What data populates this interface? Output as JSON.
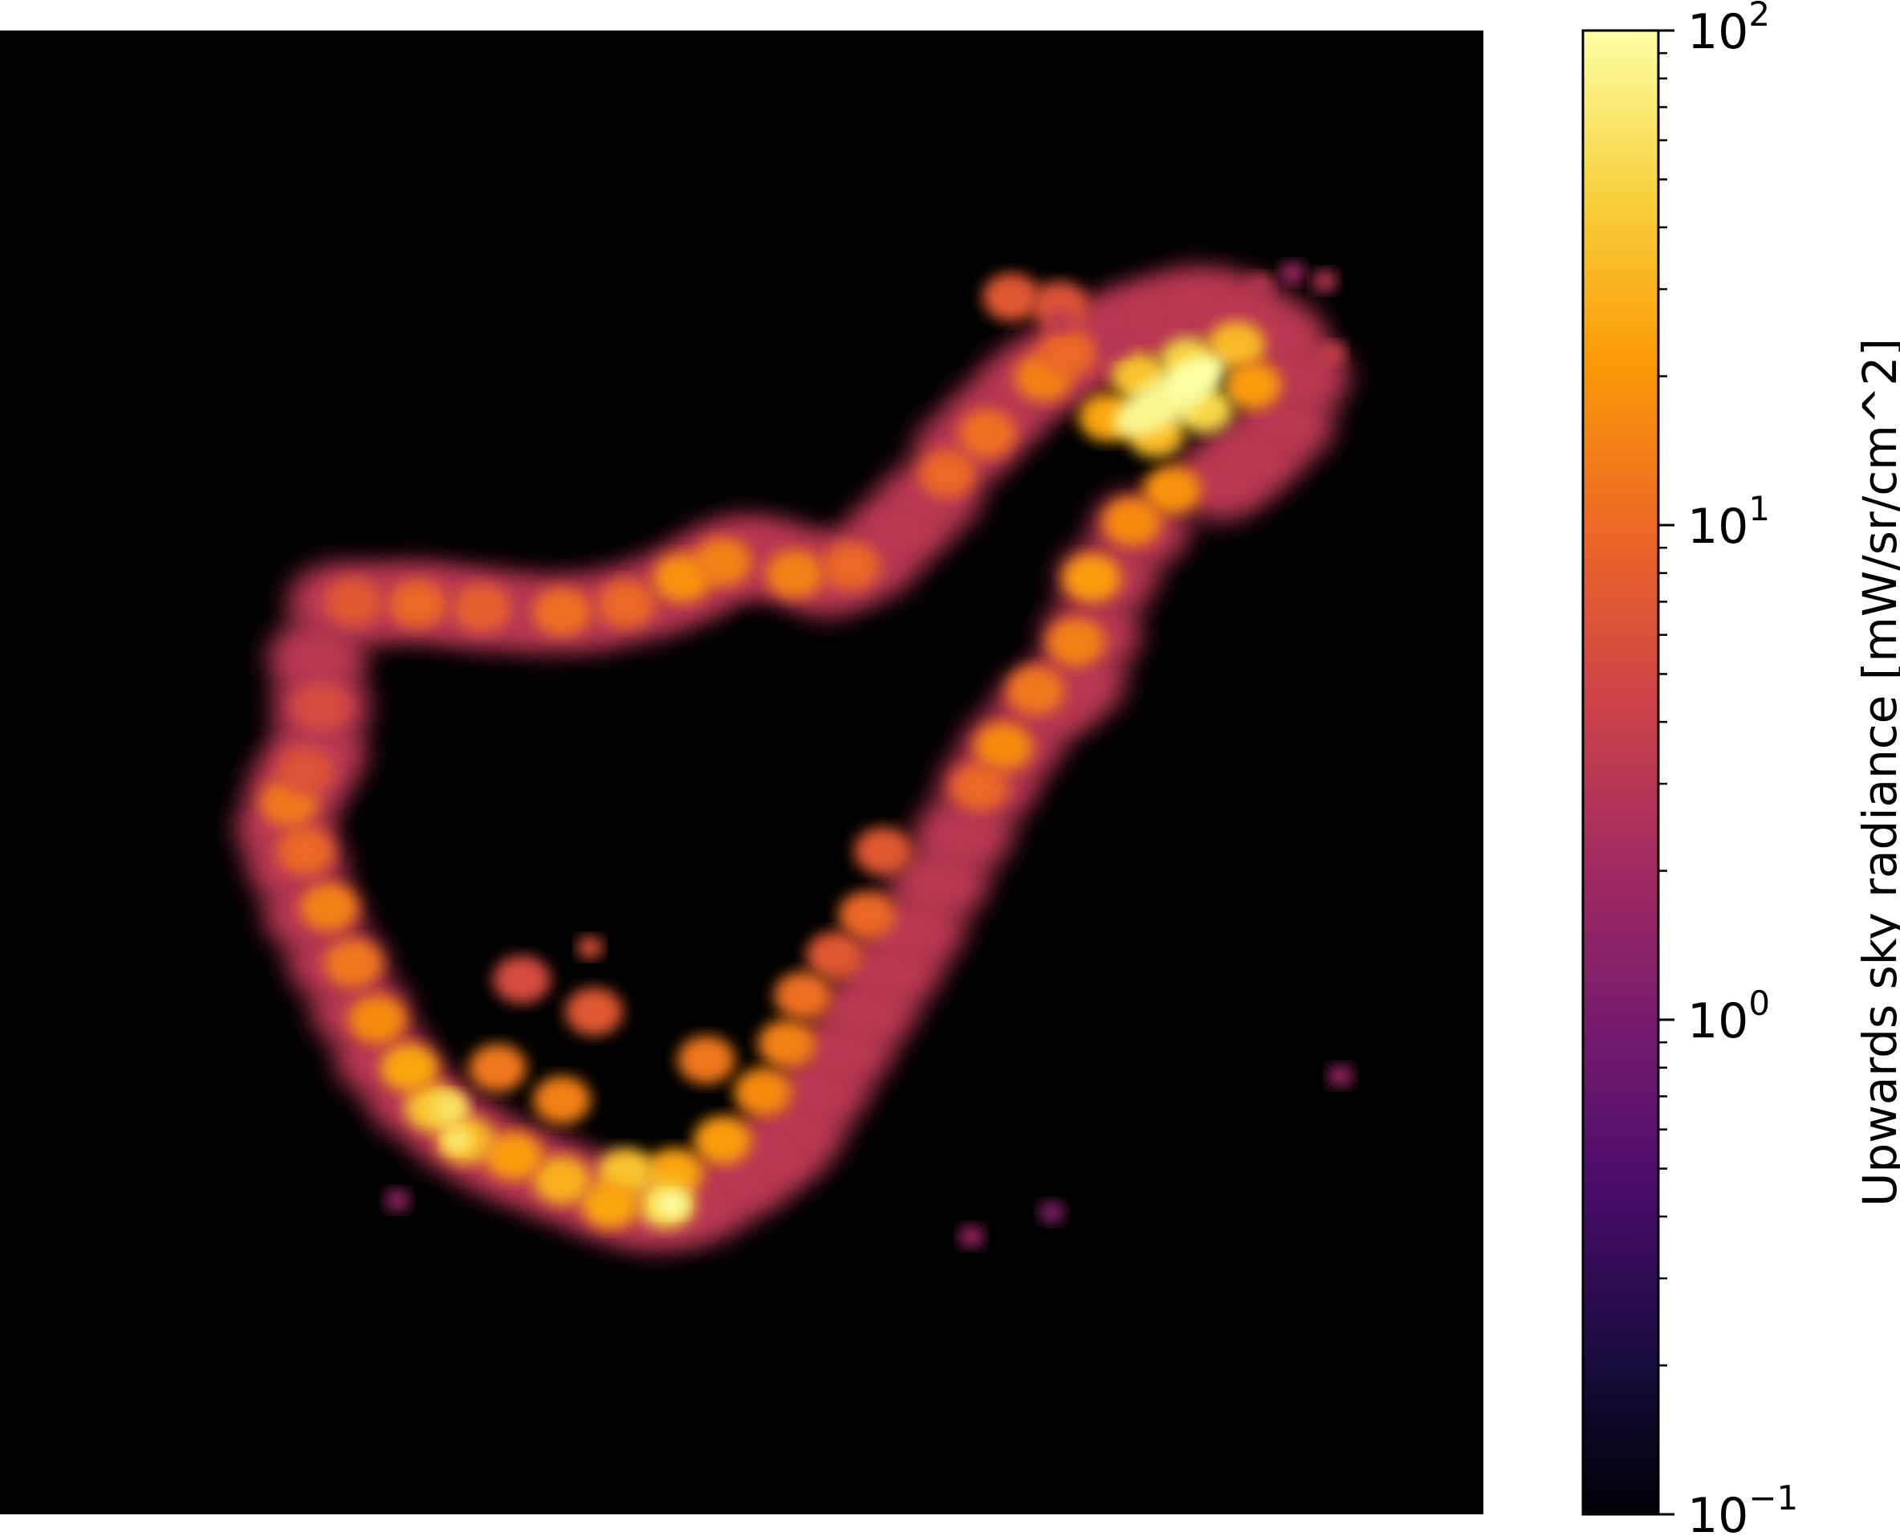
{
  "chart_data": {
    "type": "heatmap",
    "title": "",
    "xlabel": "",
    "ylabel": "",
    "colormap": "inferno",
    "color_scale": "log",
    "color_range": [
      0.1,
      100
    ],
    "background_color": "#000000",
    "colorbar": {
      "label": "Upwards sky radiance [mW/sr/cm^2]",
      "placement": "right",
      "major_ticks": [
        {
          "value": 100,
          "base": "10",
          "exponent": "2"
        },
        {
          "value": 10,
          "base": "10",
          "exponent": "1"
        },
        {
          "value": 1,
          "base": "10",
          "exponent": "0"
        },
        {
          "value": 0.1,
          "base": "10",
          "exponent": "−1"
        }
      ]
    },
    "colormap_stops": [
      "#000004",
      "#1b0c41",
      "#4a0c6b",
      "#781c6d",
      "#a52c60",
      "#cf4446",
      "#ed6925",
      "#fb9b06",
      "#f7d13d",
      "#fcffa4"
    ]
  }
}
